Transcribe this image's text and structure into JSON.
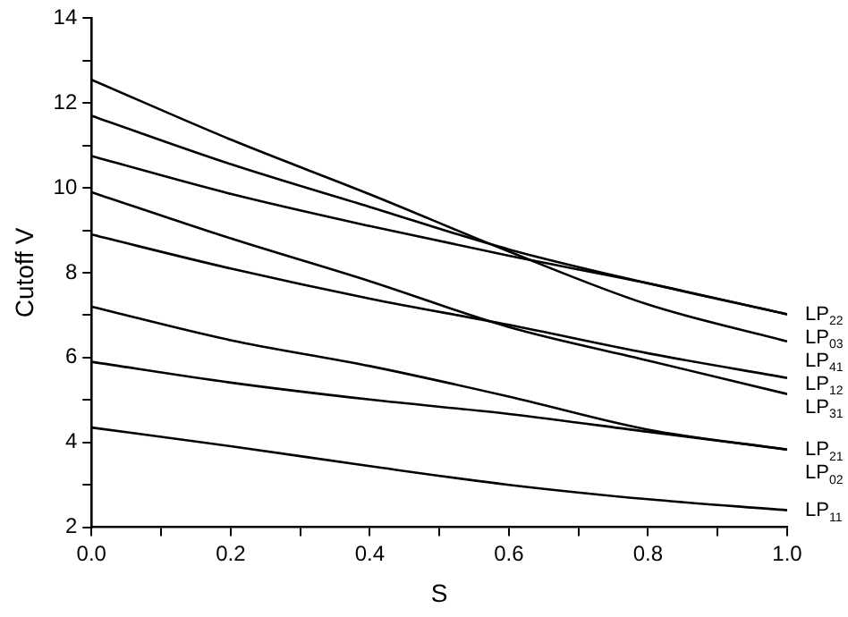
{
  "chart_data": {
    "type": "line",
    "xlabel": "S",
    "ylabel": "Cutoff V",
    "x": [
      0,
      0.2,
      0.4,
      0.6,
      0.8,
      1.0
    ],
    "xlim": [
      0,
      1.0
    ],
    "xticks": [
      {
        "value": 0,
        "label": "0.0"
      },
      {
        "value": 0.1,
        "label": null
      },
      {
        "value": 0.2,
        "label": "0.2"
      },
      {
        "value": 0.3,
        "label": null
      },
      {
        "value": 0.4,
        "label": "0.4"
      },
      {
        "value": 0.5,
        "label": null
      },
      {
        "value": 0.6,
        "label": "0.6"
      },
      {
        "value": 0.7,
        "label": null
      },
      {
        "value": 0.8,
        "label": "0.8"
      },
      {
        "value": 0.9,
        "label": null
      },
      {
        "value": 1.0,
        "label": "1.0"
      }
    ],
    "ylim": [
      2,
      14
    ],
    "yticks": [
      2,
      {
        "value": 3,
        "label": null
      },
      4,
      {
        "value": 5,
        "label": null
      },
      6,
      {
        "value": 7,
        "label": null
      },
      8,
      {
        "value": 9,
        "label": null
      },
      10,
      {
        "value": 11,
        "label": null
      },
      12,
      {
        "value": 13,
        "label": null
      },
      14
    ],
    "grid": false,
    "legend": false,
    "marker": "none",
    "line_style": "solid",
    "series": [
      {
        "name": "LP$_{22}$",
        "color": "#000000",
        "values": [
          11.7,
          10.56,
          9.55,
          8.55,
          7.75,
          7.02
        ]
      },
      {
        "name": "LP$_{03}$",
        "color": "#000000",
        "values": [
          10.75,
          9.86,
          9.1,
          8.4,
          7.75,
          7.02
        ]
      },
      {
        "name": "LP$_{41}$",
        "color": "#000000",
        "values": [
          12.55,
          11.14,
          9.85,
          8.5,
          7.25,
          6.38
        ]
      },
      {
        "name": "LP$_{12}$",
        "color": "#000000",
        "values": [
          8.9,
          8.1,
          7.39,
          6.77,
          6.1,
          5.52
        ]
      },
      {
        "name": "LP$_{31}$",
        "color": "#000000",
        "values": [
          9.9,
          8.81,
          7.8,
          6.72,
          5.93,
          5.14
        ]
      },
      {
        "name": "LP$_{21}$",
        "color": "#000000",
        "values": [
          7.2,
          6.41,
          5.8,
          5.08,
          4.3,
          3.83
        ]
      },
      {
        "name": "LP$_{02}$",
        "color": "#000000",
        "values": [
          5.9,
          5.41,
          5.01,
          4.67,
          4.25,
          3.83
        ]
      },
      {
        "name": "LP$_{11}$",
        "color": "#000000",
        "values": [
          4.35,
          3.91,
          3.44,
          3.0,
          2.66,
          2.4
        ]
      }
    ]
  }
}
